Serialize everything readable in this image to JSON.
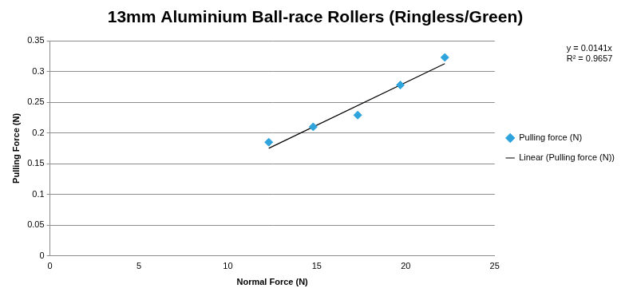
{
  "chart_data": {
    "type": "scatter",
    "title": "13mm Aluminium Ball-race Rollers (Ringless/Green)",
    "x_label": "Normal Force (N)",
    "y_label": "Pulling Force (N)",
    "annotations": [
      "y = 0.0141x",
      "R² = 0.9657"
    ],
    "series": [
      {
        "name": "Pulling force (N)",
        "color": "#2fa4dc",
        "marker": "diamond",
        "x": [
          12.3,
          14.8,
          17.3,
          19.7,
          22.2
        ],
        "values": [
          0.185,
          0.21,
          0.229,
          0.278,
          0.323
        ]
      },
      {
        "name": "Linear (Pulling force (N))",
        "color": "#000000",
        "type": "line",
        "marker": "none",
        "line_style": "solid",
        "x": [
          12.3,
          22.2
        ],
        "values": [
          0.175,
          0.313
        ]
      }
    ],
    "xlim": [
      0,
      25
    ],
    "xticks": [
      0,
      5,
      10,
      15,
      20,
      25
    ],
    "ylim": [
      0,
      0.35
    ],
    "yticks": [
      0,
      0.05,
      0.1,
      0.15,
      0.2,
      0.25,
      0.3,
      0.35
    ],
    "grid": "y",
    "legend": "right"
  }
}
